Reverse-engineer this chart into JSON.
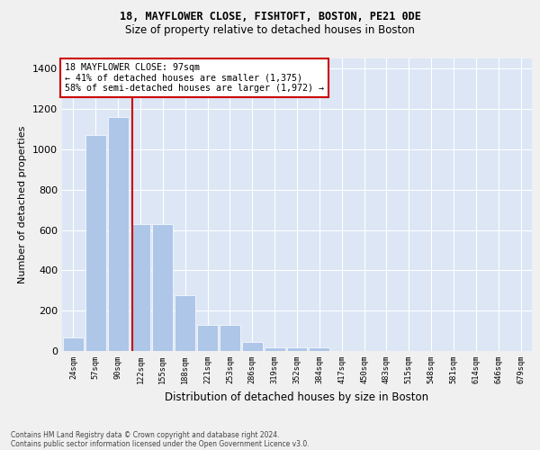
{
  "title1": "18, MAYFLOWER CLOSE, FISHTOFT, BOSTON, PE21 0DE",
  "title2": "Size of property relative to detached houses in Boston",
  "xlabel": "Distribution of detached houses by size in Boston",
  "ylabel": "Number of detached properties",
  "categories": [
    "24sqm",
    "57sqm",
    "90sqm",
    "122sqm",
    "155sqm",
    "188sqm",
    "221sqm",
    "253sqm",
    "286sqm",
    "319sqm",
    "352sqm",
    "384sqm",
    "417sqm",
    "450sqm",
    "483sqm",
    "515sqm",
    "548sqm",
    "581sqm",
    "614sqm",
    "646sqm",
    "679sqm"
  ],
  "values": [
    65,
    1070,
    1160,
    630,
    630,
    275,
    130,
    130,
    45,
    20,
    20,
    20,
    0,
    0,
    0,
    0,
    0,
    0,
    0,
    0,
    0
  ],
  "bar_color": "#aec6e8",
  "vline_color": "#cc0000",
  "vline_x": 2.62,
  "annotation_title": "18 MAYFLOWER CLOSE: 97sqm",
  "annotation_line1": "← 41% of detached houses are smaller (1,375)",
  "annotation_line2": "58% of semi-detached houses are larger (1,972) →",
  "annotation_box_color": "#ffffff",
  "annotation_box_edge": "#cc0000",
  "ylim": [
    0,
    1450
  ],
  "yticks": [
    0,
    200,
    400,
    600,
    800,
    1000,
    1200,
    1400
  ],
  "background_color": "#dce6f5",
  "grid_color": "#ffffff",
  "fig_bg": "#f0f0f0",
  "footer1": "Contains HM Land Registry data © Crown copyright and database right 2024.",
  "footer2": "Contains public sector information licensed under the Open Government Licence v3.0."
}
